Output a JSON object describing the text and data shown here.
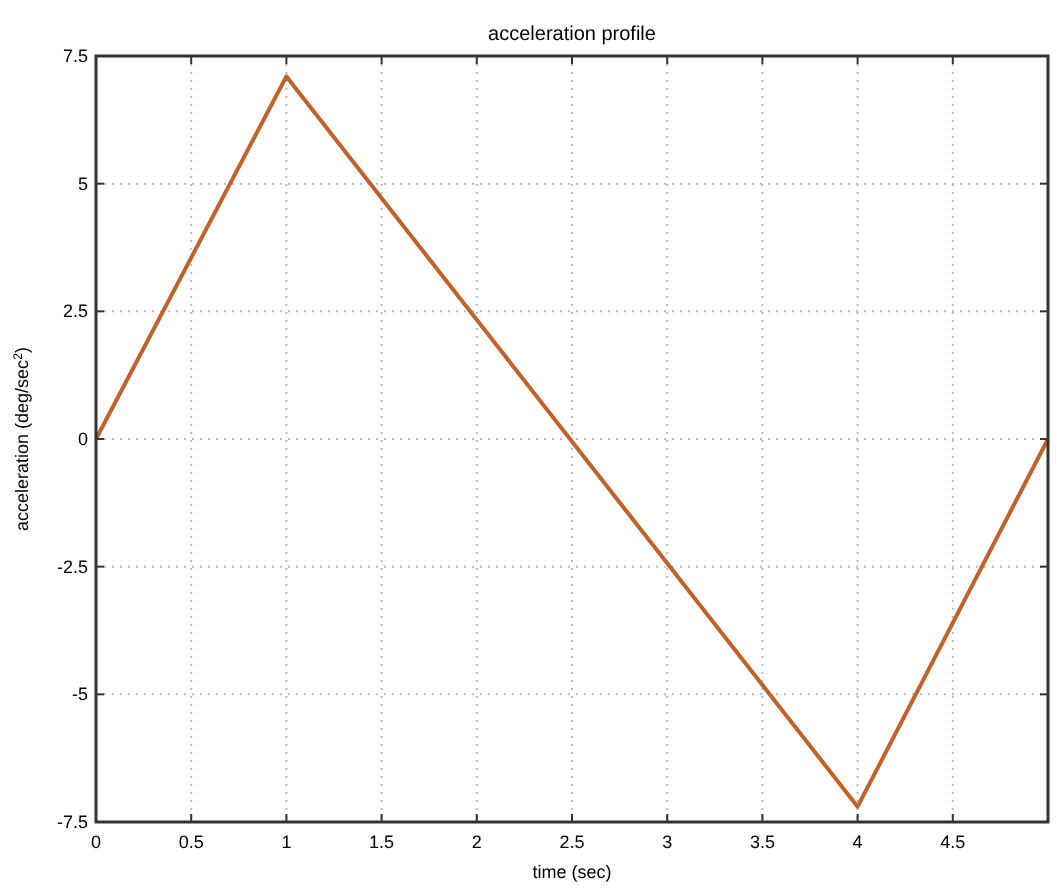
{
  "chart_data": {
    "type": "line",
    "title": "acceleration profile",
    "xlabel": "time (sec)",
    "ylabel": "acceleration (deg/sec$^{2}$)",
    "x": [
      0,
      1,
      4,
      5
    ],
    "series": [
      {
        "color": "#c0622a",
        "values": [
          0,
          7.1,
          -7.2,
          0
        ]
      }
    ],
    "xlim": [
      0,
      5
    ],
    "xticks": [
      0,
      0.5,
      1,
      1.5,
      2,
      2.5,
      3,
      3.5,
      4,
      4.5
    ],
    "ylim": [
      -7.5,
      7.5
    ],
    "yticks": [
      -7.5,
      -5,
      -2.5,
      0,
      2.5,
      5,
      7.5
    ],
    "grid": true,
    "line_style": "solid",
    "marker": "none"
  }
}
